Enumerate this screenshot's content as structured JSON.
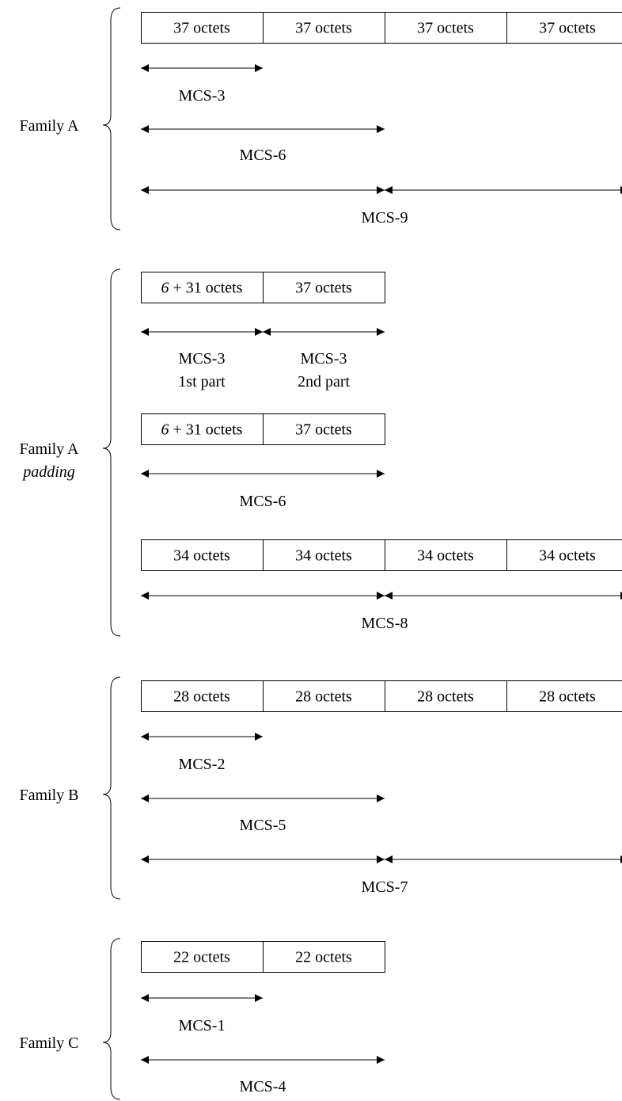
{
  "families": [
    {
      "name": "Family A",
      "sub": "",
      "groups": [
        {
          "cells": [
            "37 octets",
            "37 octets",
            "37 octets",
            "37 octets"
          ],
          "arrows": [
            {
              "segments": [
                [
                  0,
                  1
                ]
              ],
              "label": [
                "MCS-3"
              ]
            },
            {
              "segments": [
                [
                  0,
                  2
                ]
              ],
              "label": [
                "MCS-6"
              ]
            },
            {
              "segments": [
                [
                  0,
                  2
                ],
                [
                  2,
                  4
                ]
              ],
              "label": [
                "MCS-9"
              ]
            }
          ]
        }
      ]
    },
    {
      "name": "Family A",
      "sub": "padding",
      "groups": [
        {
          "cells": [
            "6 + 31 octets",
            "37 octets"
          ],
          "arrows": [
            {
              "segments": [
                [
                  0,
                  1
                ],
                [
                  1,
                  2
                ]
              ],
              "labels": [
                [
                  "MCS-3",
                  "1st part"
                ],
                [
                  "MCS-3",
                  "2nd part"
                ]
              ]
            }
          ]
        },
        {
          "cells": [
            "6 + 31 octets",
            "37 octets"
          ],
          "arrows": [
            {
              "segments": [
                [
                  0,
                  2
                ]
              ],
              "label": [
                "MCS-6"
              ]
            }
          ]
        },
        {
          "cells": [
            "34 octets",
            "34 octets",
            "34 octets",
            "34 octets"
          ],
          "arrows": [
            {
              "segments": [
                [
                  0,
                  2
                ],
                [
                  2,
                  4
                ]
              ],
              "label": [
                "MCS-8"
              ]
            }
          ]
        }
      ]
    },
    {
      "name": "Family B",
      "sub": "",
      "groups": [
        {
          "cells": [
            "28 octets",
            "28 octets",
            "28 octets",
            "28 octets"
          ],
          "arrows": [
            {
              "segments": [
                [
                  0,
                  1
                ]
              ],
              "label": [
                "MCS-2"
              ]
            },
            {
              "segments": [
                [
                  0,
                  2
                ]
              ],
              "label": [
                "MCS-5"
              ]
            },
            {
              "segments": [
                [
                  0,
                  2
                ],
                [
                  2,
                  4
                ]
              ],
              "label": [
                "MCS-7"
              ]
            }
          ]
        }
      ]
    },
    {
      "name": "Family C",
      "sub": "",
      "groups": [
        {
          "cells": [
            "22 octets",
            "22 octets"
          ],
          "arrows": [
            {
              "segments": [
                [
                  0,
                  1
                ]
              ],
              "label": [
                "MCS-1"
              ]
            },
            {
              "segments": [
                [
                  0,
                  2
                ]
              ],
              "label": [
                "MCS-4"
              ]
            }
          ]
        }
      ]
    }
  ]
}
